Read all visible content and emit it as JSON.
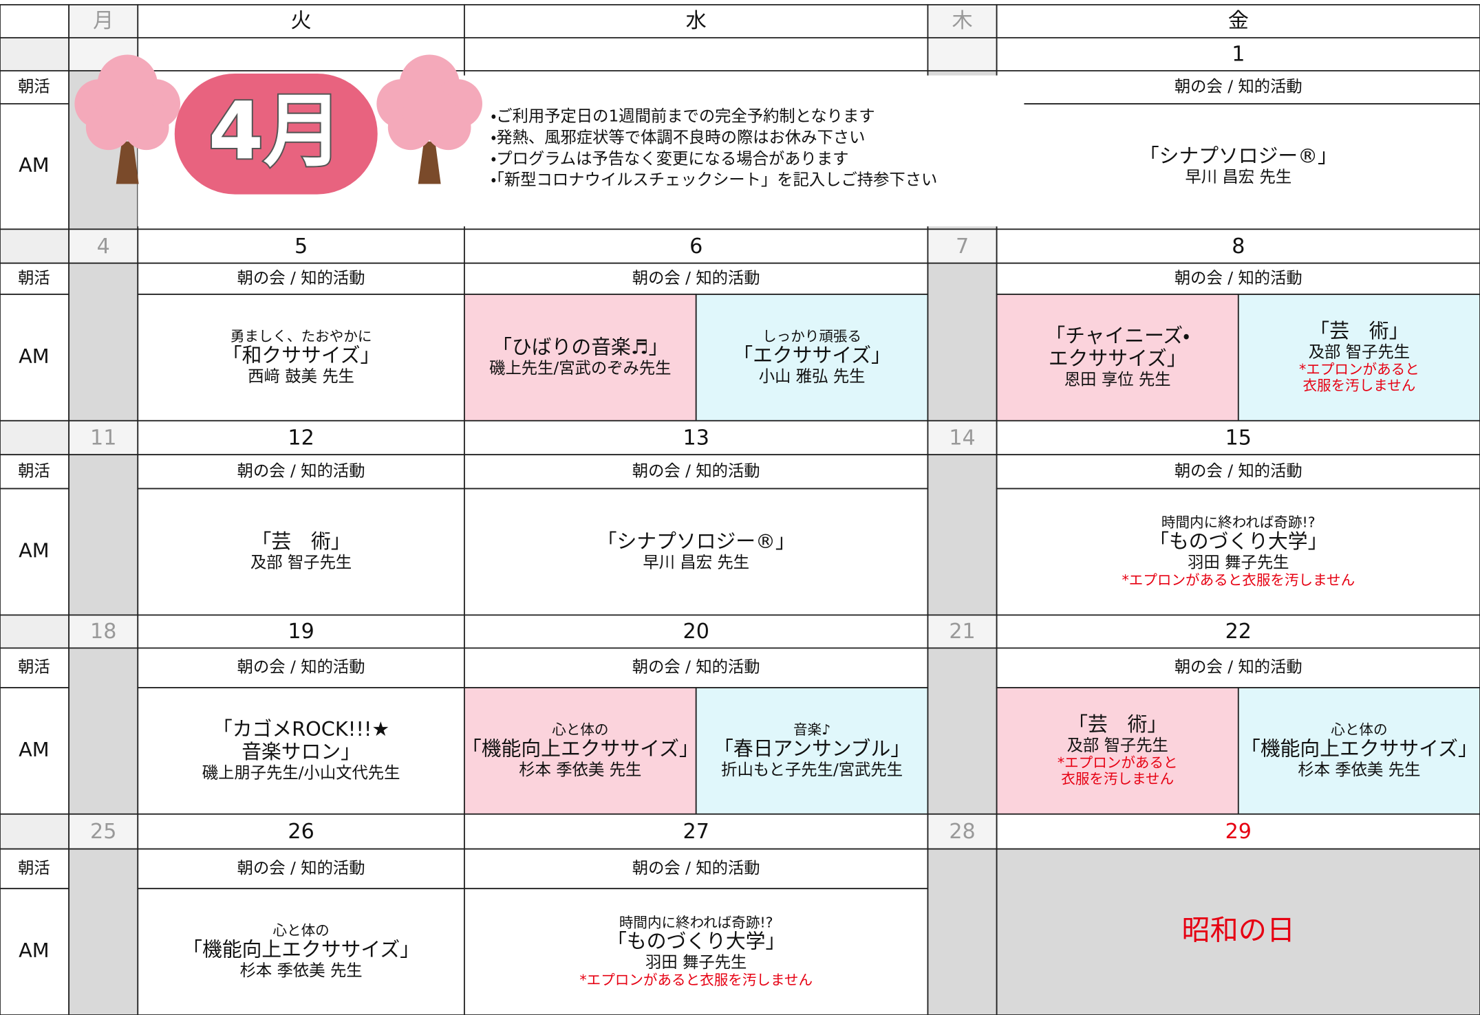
{
  "header": {
    "days": [
      "月",
      "火",
      "水",
      "木",
      "金"
    ]
  },
  "row_labels": {
    "morning": "朝活",
    "am": "AM"
  },
  "banner": {
    "month": "4月",
    "notes": [
      "・ご利用予定日の1週間前までの完全予約制となります",
      "・発熱、風邪症状等で体調不良時の際はお休み下さい",
      "・プログラムは予告なく変更になる場合があります",
      "・「新型コロナウイルスチェックシート」を記入しご持参下さい"
    ]
  },
  "weeks": [
    {
      "dates": {
        "fri": "1"
      },
      "morning": {
        "fri": "朝の会 / 知的活動"
      },
      "am": {
        "fri": [
          {
            "title": [
              "「シナプソロジー®」"
            ],
            "teacher": "早川 昌宏 先生",
            "bg": "#ffffff"
          }
        ]
      }
    },
    {
      "dates": {
        "mon": "4",
        "tue": "5",
        "wed": "6",
        "thu": "7",
        "fri": "8"
      },
      "morning": {
        "tue": "朝の会 / 知的活動",
        "wed": "朝の会 / 知的活動",
        "fri": "朝の会 / 知的活動"
      },
      "am": {
        "tue": [
          {
            "lead": "勇ましく、たおやかに",
            "title": [
              "「和クササイズ」"
            ],
            "teacher": "西﨑 鼓美 先生",
            "bg": "#ffffff"
          }
        ],
        "wed": [
          {
            "title": [
              "「ひばりの音楽♬」"
            ],
            "teacher": "磯上先生/宮武のぞみ先生",
            "bg": "#fbd3dc"
          },
          {
            "lead": "しっかり頑張る",
            "title": [
              "「エクササイズ」"
            ],
            "teacher": "小山 雅弘 先生",
            "bg": "#e0f7fb"
          }
        ],
        "fri": [
          {
            "title": [
              "「チャイニーズ・",
              "エクササイズ」"
            ],
            "teacher": "恩田 享位 先生",
            "bg": "#fbd3dc"
          },
          {
            "title": [
              "「芸　術」"
            ],
            "teacher": "及部 智子先生",
            "note": [
              "*エプロンがあると",
              "衣服を汚しません"
            ],
            "bg": "#e0f7fb"
          }
        ]
      }
    },
    {
      "dates": {
        "mon": "11",
        "tue": "12",
        "wed": "13",
        "thu": "14",
        "fri": "15"
      },
      "morning": {
        "tue": "朝の会 / 知的活動",
        "wed": "朝の会 / 知的活動",
        "fri": "朝の会 / 知的活動"
      },
      "am": {
        "tue": [
          {
            "title": [
              "「芸　術」"
            ],
            "teacher": "及部 智子先生",
            "bg": "#ffffff"
          }
        ],
        "wed": [
          {
            "title": [
              "「シナプソロジー®」"
            ],
            "teacher": "早川 昌宏 先生",
            "bg": "#ffffff"
          }
        ],
        "fri": [
          {
            "lead": "時間内に終われば奇跡!?",
            "title": [
              "「ものづくり大学」"
            ],
            "teacher": "羽田 舞子先生",
            "note": [
              "*エプロンがあると衣服を汚しません"
            ],
            "bg": "#ffffff"
          }
        ]
      }
    },
    {
      "dates": {
        "mon": "18",
        "tue": "19",
        "wed": "20",
        "thu": "21",
        "fri": "22"
      },
      "morning": {
        "tue": "朝の会 / 知的活動",
        "wed": "朝の会 / 知的活動",
        "fri": "朝の会 / 知的活動"
      },
      "am": {
        "tue": [
          {
            "title": [
              "「カゴメROCK!!!★",
              "音楽サロン」"
            ],
            "teacher": "磯上朋子先生/小山文代先生",
            "bg": "#ffffff"
          }
        ],
        "wed": [
          {
            "lead": "心と体の",
            "title": [
              "「機能向上エクササイズ」"
            ],
            "teacher": "杉本 季依美 先生",
            "bg": "#fbd3dc"
          },
          {
            "lead": "音楽♪",
            "title": [
              "「春日アンサンブル」"
            ],
            "teacher": "折山もと子先生/宮武先生",
            "bg": "#e0f7fb"
          }
        ],
        "fri": [
          {
            "title": [
              "「芸　術」"
            ],
            "teacher": "及部 智子先生",
            "note": [
              "*エプロンがあると",
              "衣服を汚しません"
            ],
            "bg": "#fbd3dc"
          },
          {
            "lead": "心と体の",
            "title": [
              "「機能向上エクササイズ」"
            ],
            "teacher": "杉本 季依美 先生",
            "bg": "#e0f7fb"
          }
        ]
      }
    },
    {
      "dates": {
        "mon": "25",
        "tue": "26",
        "wed": "27",
        "thu": "28",
        "fri": "29"
      },
      "date_colors": {
        "fri": "#e60012"
      },
      "morning": {
        "tue": "朝の会 / 知的活動",
        "wed": "朝の会 / 知的活動"
      },
      "am": {
        "tue": [
          {
            "lead": "心と体の",
            "title": [
              "「機能向上エクササイズ」"
            ],
            "teacher": "杉本 季依美 先生",
            "bg": "#ffffff"
          }
        ],
        "wed": [
          {
            "lead": "時間内に終われば奇跡!?",
            "title": [
              "「ものづくり大学」"
            ],
            "teacher": "羽田 舞子先生",
            "note": [
              "*エプロンがあると衣服を汚しません"
            ],
            "bg": "#ffffff"
          }
        ],
        "fri": [
          {
            "holiday": "昭和の日",
            "bg": "#d9d9d9"
          }
        ]
      }
    }
  ]
}
